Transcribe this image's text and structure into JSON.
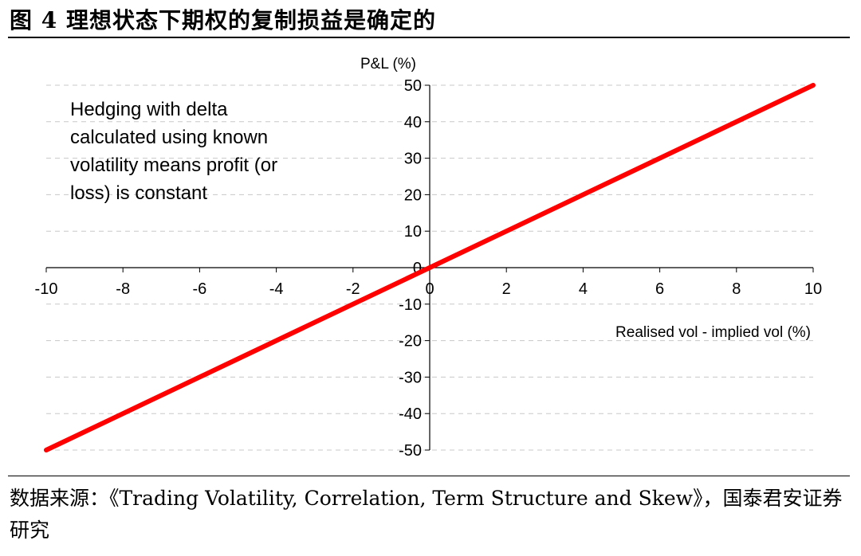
{
  "header": {
    "figure_title": "图 4  理想状态下期权的复制损益是确定的"
  },
  "chart_data": {
    "type": "line",
    "ylabel": "P&L (%)",
    "xlabel": "Realised vol - implied vol (%)",
    "annotation": [
      "Hedging with delta",
      "calculated using known",
      "volatility means profit (or",
      "loss) is constant"
    ],
    "xlim": [
      -10,
      10
    ],
    "ylim": [
      -50,
      50
    ],
    "x_ticks": [
      -10,
      -8,
      -6,
      -4,
      -2,
      0,
      2,
      4,
      6,
      8,
      10
    ],
    "y_ticks": [
      -50,
      -40,
      -30,
      -20,
      -10,
      0,
      10,
      20,
      30,
      40,
      50
    ],
    "grid": "horizontal dashed",
    "series": [
      {
        "color": "#ff0000",
        "x": [
          -10,
          -5,
          0,
          5,
          10
        ],
        "y": [
          -50,
          -25,
          0,
          25,
          50
        ]
      }
    ]
  },
  "footer": {
    "source": "数据来源：《Trading Volatility, Correlation, Term Structure and Skew》，国泰君安证券研究"
  }
}
